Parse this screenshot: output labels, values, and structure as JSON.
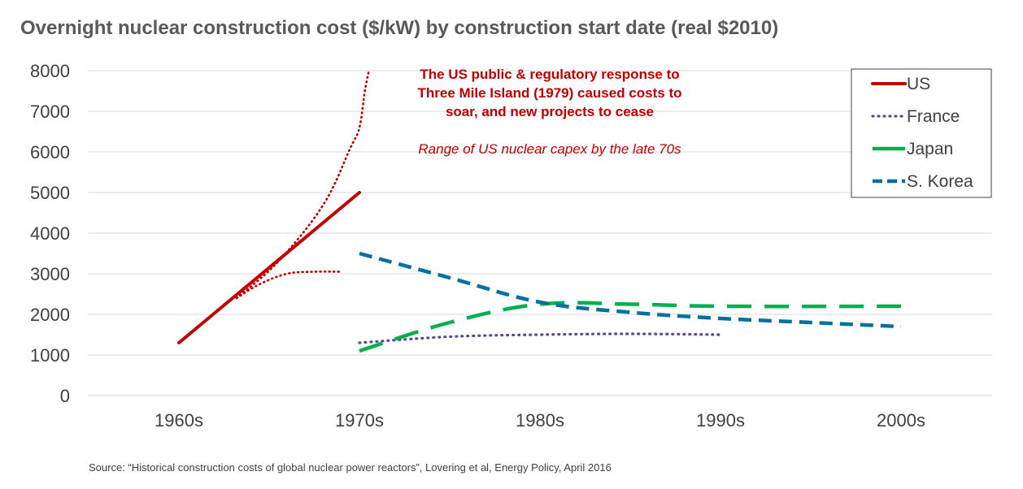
{
  "chart_data": {
    "type": "line",
    "title": "Overnight nuclear construction cost ($/kW) by construction start date (real $2010)",
    "xlabel": "",
    "ylabel": "",
    "categories": [
      "1960s",
      "1970s",
      "1980s",
      "1990s",
      "2000s"
    ],
    "ylim": [
      0,
      8000
    ],
    "yticks": [
      0,
      1000,
      2000,
      3000,
      4000,
      5000,
      6000,
      7000,
      8000
    ],
    "grid": true,
    "legend_placement": "top-right",
    "series": [
      {
        "name": "US",
        "style": "solid",
        "color": "#c00000",
        "points": [
          [
            0,
            1300
          ],
          [
            1,
            5000
          ]
        ]
      },
      {
        "name": "France",
        "style": "dotted",
        "color": "#5b4a8c",
        "points": [
          [
            1,
            1300
          ],
          [
            1.5,
            1450
          ],
          [
            2,
            1500
          ],
          [
            2.5,
            1520
          ],
          [
            3,
            1500
          ]
        ]
      },
      {
        "name": "Japan",
        "style": "long-dash",
        "color": "#00b050",
        "points": [
          [
            1,
            1100
          ],
          [
            1.5,
            1800
          ],
          [
            2,
            2250
          ],
          [
            2.5,
            2250
          ],
          [
            3,
            2200
          ],
          [
            4,
            2200
          ]
        ]
      },
      {
        "name": "S. Korea",
        "style": "dash",
        "color": "#0070a0",
        "points": [
          [
            1,
            3500
          ],
          [
            1.5,
            2900
          ],
          [
            2,
            2300
          ],
          [
            2.5,
            2050
          ],
          [
            3,
            1900
          ],
          [
            3.5,
            1800
          ],
          [
            4,
            1700
          ]
        ]
      }
    ],
    "range_lines": [
      {
        "style": "dotted",
        "color": "#c00000",
        "points": [
          [
            0.32,
            2400
          ],
          [
            0.55,
            3300
          ],
          [
            0.8,
            4700
          ],
          [
            0.95,
            6100
          ],
          [
            1,
            6600
          ],
          [
            1.03,
            7500
          ],
          [
            1.05,
            7950
          ]
        ]
      },
      {
        "style": "dotted",
        "color": "#c00000",
        "points": [
          [
            0.32,
            2400
          ],
          [
            0.45,
            2750
          ],
          [
            0.6,
            3000
          ],
          [
            0.75,
            3050
          ],
          [
            0.9,
            3050
          ]
        ]
      }
    ],
    "annotations": [
      "The US public & regulatory response to",
      "Three Mile Island (1979) caused costs to",
      "soar, and new projects to cease",
      "Range of US nuclear capex by the late 70s"
    ],
    "source": "Source: “Historical construction costs of global nuclear power reactors”, Lovering et al, Energy Policy, April 2016"
  }
}
